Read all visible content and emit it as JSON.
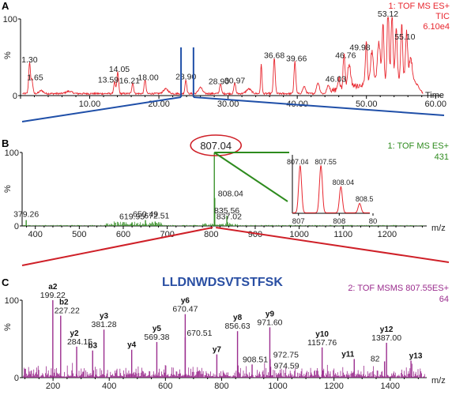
{
  "chart_data": [
    {
      "type": "line",
      "panel": "A",
      "info": [
        "1: TOF MS ES+",
        "TIC",
        "6.10e4"
      ],
      "color": "#e8262e",
      "xlabel": "Time",
      "ylabel": "%",
      "xlim": [
        0,
        61
      ],
      "ylim": [
        0,
        100
      ],
      "x_ticks": [
        "10.00",
        "20.00",
        "30.00",
        "40.00",
        "50.00",
        "60.00"
      ],
      "y_ticks": [
        "0",
        "100"
      ],
      "peak_labels": [
        {
          "x": 1.3,
          "y": 40,
          "text": "1.30"
        },
        {
          "x": 1.65,
          "y": 18,
          "text": "1.65"
        },
        {
          "x": 13.59,
          "y": 15,
          "text": "13.59"
        },
        {
          "x": 14.05,
          "y": 28,
          "text": "14.05"
        },
        {
          "x": 16.21,
          "y": 14,
          "text": "16.21"
        },
        {
          "x": 18.0,
          "y": 18,
          "text": "18.00"
        },
        {
          "x": 23.9,
          "y": 18,
          "text": "23.90"
        },
        {
          "x": 28.9,
          "y": 13,
          "text": "28.90"
        },
        {
          "x": 30.97,
          "y": 14,
          "text": "30.97"
        },
        {
          "x": 36.68,
          "y": 46,
          "text": "36.68"
        },
        {
          "x": 39.66,
          "y": 42,
          "text": "39.66"
        },
        {
          "x": 46.03,
          "y": 16,
          "text": "46.03"
        },
        {
          "x": 46.76,
          "y": 46,
          "text": "46.76"
        },
        {
          "x": 49.98,
          "y": 56,
          "text": "49.98"
        },
        {
          "x": 53.12,
          "y": 100,
          "text": "53.12"
        },
        {
          "x": 55.1,
          "y": 70,
          "text": "55.10"
        }
      ],
      "selection_window": [
        23.2,
        25.0
      ]
    },
    {
      "type": "bar",
      "panel": "B",
      "info": [
        "1: TOF MS ES+",
        "431"
      ],
      "color": "#2e8b1e",
      "xlabel": "m/z",
      "ylabel": "%",
      "xlim": [
        370,
        1290
      ],
      "ylim": [
        0,
        100
      ],
      "x_ticks": [
        "400",
        "500",
        "600",
        "700",
        "800",
        "900",
        "1000",
        "1100",
        "1200"
      ],
      "y_ticks": [
        "0",
        "100"
      ],
      "peak_labels": [
        {
          "x": 379.26,
          "y": 8,
          "text": "379.26"
        },
        {
          "x": 619.95,
          "y": 5,
          "text": "619.95"
        },
        {
          "x": 650.49,
          "y": 8,
          "text": "650.49"
        },
        {
          "x": 672.51,
          "y": 6,
          "text": "672.51"
        },
        {
          "x": 807.04,
          "y": 100,
          "text": "807.04"
        },
        {
          "x": 808.04,
          "y": 38,
          "text": "808.04"
        },
        {
          "x": 835.56,
          "y": 14,
          "text": "835.56"
        },
        {
          "x": 837.02,
          "y": 5,
          "text": "837.02"
        }
      ],
      "highlighted_peak": "807.04",
      "inset": {
        "type": "line",
        "color": "#e8262e",
        "x_ticks": [
          "807",
          "808",
          "80"
        ],
        "peak_labels": [
          {
            "x": 807.04,
            "y": 100,
            "text": "807.04"
          },
          {
            "x": 807.55,
            "y": 100,
            "text": "807.55"
          },
          {
            "x": 808.04,
            "y": 55,
            "text": "808.04"
          },
          {
            "x": 808.5,
            "y": 20,
            "text": "808.5"
          }
        ]
      }
    },
    {
      "type": "bar",
      "panel": "C",
      "title": "LLDNWDSVTSTFSK",
      "info": [
        "2: TOF MSMS 807.55ES+",
        "64"
      ],
      "color": "#9b2d8e",
      "xlabel": "m/z",
      "ylabel": "%",
      "xlim": [
        90,
        1530
      ],
      "ylim": [
        0,
        100
      ],
      "x_ticks": [
        "200",
        "400",
        "600",
        "800",
        "1000",
        "1200",
        "1400"
      ],
      "y_ticks": [
        "0",
        "100"
      ],
      "peak_labels": [
        {
          "x": 199.22,
          "y": 100,
          "text": "199.22",
          "ion": "a2"
        },
        {
          "x": 227.22,
          "y": 80,
          "text": "227.22",
          "ion": "b2"
        },
        {
          "x": 284.15,
          "y": 40,
          "text": "284.15",
          "ion": "y2"
        },
        {
          "x": 341.0,
          "y": 35,
          "text": "",
          "ion": "b3"
        },
        {
          "x": 381.28,
          "y": 62,
          "text": "381.28",
          "ion": "y3"
        },
        {
          "x": 480.0,
          "y": 36,
          "text": "",
          "ion": "y4"
        },
        {
          "x": 569.38,
          "y": 46,
          "text": "569.38",
          "ion": "y5"
        },
        {
          "x": 670.47,
          "y": 82,
          "text": "670.47",
          "ion": "y6"
        },
        {
          "x": 670.51,
          "y": 52,
          "text": "670.51",
          "ion": ""
        },
        {
          "x": 783.0,
          "y": 30,
          "text": "",
          "ion": "y7"
        },
        {
          "x": 856.63,
          "y": 60,
          "text": "856.63",
          "ion": "y8"
        },
        {
          "x": 908.51,
          "y": 17,
          "text": "908.51",
          "ion": ""
        },
        {
          "x": 971.6,
          "y": 65,
          "text": "971.60",
          "ion": "y9"
        },
        {
          "x": 972.75,
          "y": 24,
          "text": "972.75",
          "ion": ""
        },
        {
          "x": 974.59,
          "y": 14,
          "text": "974.59",
          "ion": ""
        },
        {
          "x": 1157.76,
          "y": 39,
          "text": "1157.76",
          "ion": "y10"
        },
        {
          "x": 1272.0,
          "y": 24,
          "text": "",
          "ion": "y11"
        },
        {
          "x": 1387.0,
          "y": 45,
          "text": "1387.00",
          "ion": "y12"
        },
        {
          "x": 1380.0,
          "y": 21,
          "text": "82",
          "ion": ""
        },
        {
          "x": 1474.0,
          "y": 22,
          "text": "",
          "ion": "y13"
        }
      ]
    }
  ]
}
